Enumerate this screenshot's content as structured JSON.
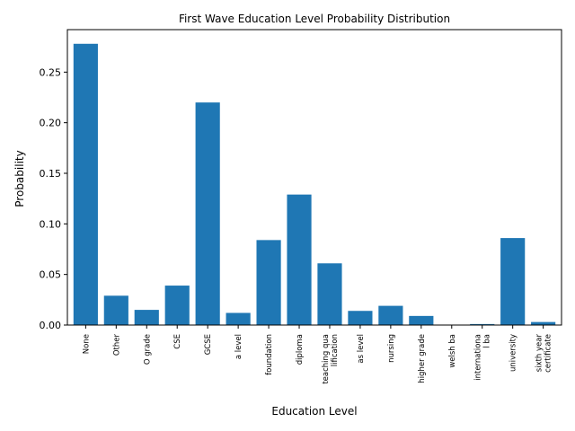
{
  "chart_data": {
    "type": "bar",
    "title": "First Wave Education Level Probability Distribution",
    "xlabel": "Education Level",
    "ylabel": "Probability",
    "categories": [
      [
        "None"
      ],
      [
        "Other"
      ],
      [
        "O grade"
      ],
      [
        "CSE"
      ],
      [
        "GCSE"
      ],
      [
        "a level"
      ],
      [
        "foundation"
      ],
      [
        "diploma"
      ],
      [
        "teaching qua",
        "lification"
      ],
      [
        "as level"
      ],
      [
        "nursing"
      ],
      [
        "higher grade"
      ],
      [
        "welsh ba"
      ],
      [
        "internationa",
        "l ba"
      ],
      [
        "university"
      ],
      [
        "sixth year",
        "certificate"
      ]
    ],
    "values": [
      0.278,
      0.029,
      0.015,
      0.039,
      0.22,
      0.012,
      0.084,
      0.129,
      0.061,
      0.014,
      0.019,
      0.009,
      0.0,
      0.001,
      0.086,
      0.003
    ],
    "ylim": [
      0,
      0.292
    ],
    "yticks": [
      "0.00",
      "0.05",
      "0.10",
      "0.15",
      "0.20",
      "0.25"
    ],
    "bar_color": "#1f77b4",
    "grid": false,
    "legend": "none"
  }
}
